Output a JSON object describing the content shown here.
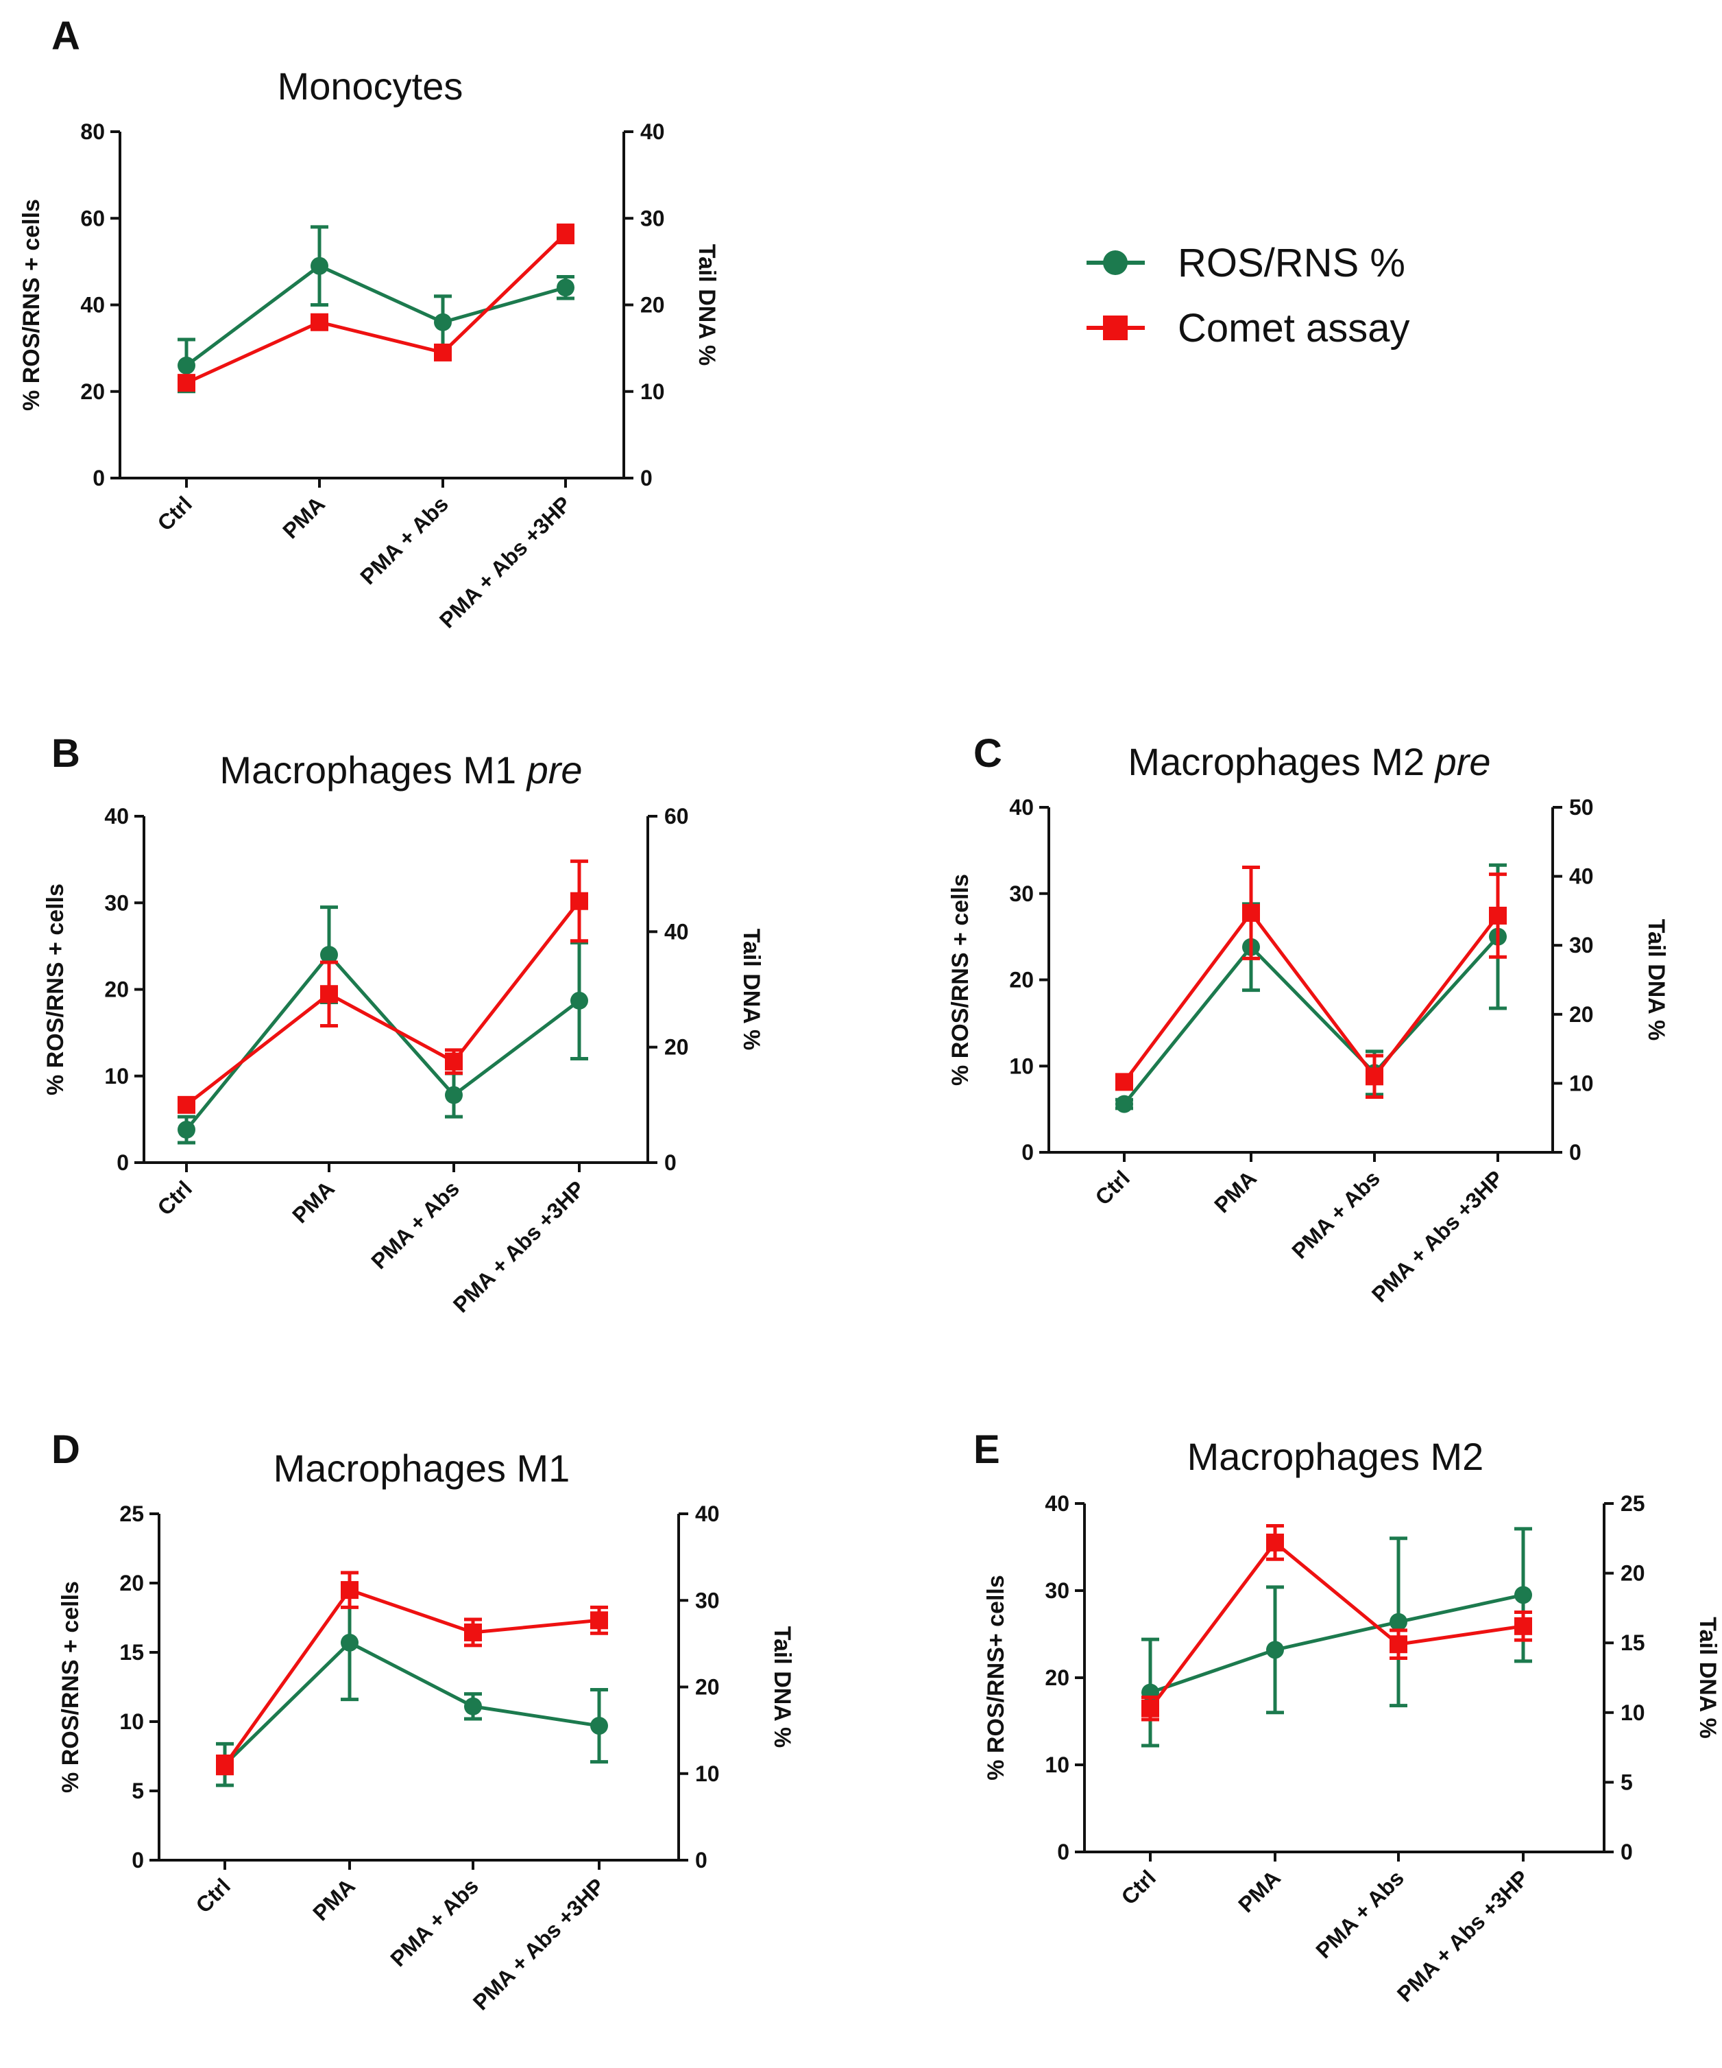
{
  "colors": {
    "ros": "#1c7a4e",
    "comet": "#ee1111",
    "axis": "#111111"
  },
  "legend": {
    "items": [
      {
        "label": "ROS/RNS %",
        "color": "#1c7a4e",
        "marker": "circle"
      },
      {
        "label": "Comet assay",
        "color": "#ee1111",
        "marker": "square"
      }
    ]
  },
  "chart_data": [
    {
      "panel": "A",
      "type": "line",
      "title": "Monocytes",
      "title_italic": "",
      "categories": [
        "Ctrl",
        "PMA",
        "PMA + Abs",
        "PMA + Abs +3HP"
      ],
      "ylabel": "% ROS/RNS + cells",
      "y2label": "Tail DNA %",
      "ylim": [
        0,
        80
      ],
      "yticks": [
        0,
        20,
        40,
        60,
        80
      ],
      "y2lim": [
        0,
        40
      ],
      "y2ticks": [
        0,
        10,
        20,
        30,
        40
      ],
      "series": [
        {
          "name": "ROS/RNS %",
          "axis": "left",
          "values": [
            26,
            49,
            36,
            44
          ],
          "err": [
            6,
            9,
            6,
            2.5
          ]
        },
        {
          "name": "Comet assay",
          "axis": "right",
          "values": [
            11,
            18,
            14.5,
            28.2
          ],
          "err": [
            0.8,
            0.8,
            0.8,
            1
          ]
        }
      ]
    },
    {
      "panel": "B",
      "type": "line",
      "title": "Macrophages M1 ",
      "title_italic": "pre",
      "categories": [
        "Ctrl",
        "PMA",
        "PMA + Abs",
        "PMA + Abs +3HP"
      ],
      "ylabel": "% ROS/RNS + cells",
      "y2label": "Tail DNA %",
      "ylim": [
        0,
        40
      ],
      "yticks": [
        0,
        10,
        20,
        30,
        40
      ],
      "y2lim": [
        0,
        60
      ],
      "y2ticks": [
        0,
        20,
        40,
        60
      ],
      "series": [
        {
          "name": "ROS/RNS %",
          "axis": "left",
          "values": [
            3.8,
            24,
            7.8,
            18.7
          ],
          "err": [
            1.5,
            5.5,
            2.5,
            6.7
          ]
        },
        {
          "name": "Comet assay",
          "axis": "right",
          "values": [
            10,
            29.2,
            17.5,
            45.3
          ],
          "err": [
            1,
            5.5,
            2,
            6.9
          ]
        }
      ]
    },
    {
      "panel": "C",
      "type": "line",
      "title": "Macrophages M2 ",
      "title_italic": "pre",
      "categories": [
        "Ctrl",
        "PMA",
        "PMA + Abs",
        "PMA + Abs +3HP"
      ],
      "ylabel": "% ROS/RNS + cells",
      "y2label": "Tail DNA %",
      "ylim": [
        0,
        40
      ],
      "yticks": [
        0,
        10,
        20,
        30,
        40
      ],
      "y2lim": [
        0,
        50
      ],
      "y2ticks": [
        0,
        10,
        20,
        30,
        40,
        50
      ],
      "series": [
        {
          "name": "ROS/RNS %",
          "axis": "left",
          "values": [
            5.6,
            23.8,
            9.2,
            25
          ],
          "err": [
            0.5,
            5,
            2.5,
            8.3
          ]
        },
        {
          "name": "Comet assay",
          "axis": "right",
          "values": [
            10.2,
            34.7,
            11,
            34.3
          ],
          "err": [
            1,
            6.6,
            3,
            6
          ]
        }
      ]
    },
    {
      "panel": "D",
      "type": "line",
      "title": "Macrophages M1",
      "title_italic": "",
      "categories": [
        "Ctrl",
        "PMA",
        "PMA + Abs",
        "PMA + Abs +3HP"
      ],
      "ylabel": "% ROS/RNS + cells",
      "y2label": "Tail DNA %",
      "ylim": [
        0,
        25
      ],
      "yticks": [
        0,
        5,
        10,
        15,
        20,
        25
      ],
      "y2lim": [
        0,
        40
      ],
      "y2ticks": [
        0,
        10,
        20,
        30,
        40
      ],
      "series": [
        {
          "name": "ROS/RNS %",
          "axis": "left",
          "values": [
            6.9,
            15.7,
            11.1,
            9.7
          ],
          "err": [
            1.5,
            4.1,
            0.9,
            2.6
          ]
        },
        {
          "name": "Comet assay",
          "axis": "right",
          "values": [
            11,
            31.2,
            26.3,
            27.7
          ],
          "err": [
            1,
            2,
            1.5,
            1.5
          ]
        }
      ]
    },
    {
      "panel": "E",
      "type": "line",
      "title": "Macrophages M2",
      "title_italic": "",
      "categories": [
        "Ctrl",
        "PMA",
        "PMA + Abs",
        "PMA + Abs +3HP"
      ],
      "ylabel": "% ROS/RNS+ cells",
      "y2label": "Tail DNA %",
      "ylim": [
        0,
        40
      ],
      "yticks": [
        0,
        10,
        20,
        30,
        40
      ],
      "y2lim": [
        0,
        25
      ],
      "y2ticks": [
        0,
        5,
        10,
        15,
        20,
        25
      ],
      "series": [
        {
          "name": "ROS/RNS %",
          "axis": "left",
          "values": [
            18.3,
            23.2,
            26.4,
            29.5
          ],
          "err": [
            6.1,
            7.2,
            9.6,
            7.6
          ]
        },
        {
          "name": "Comet assay",
          "axis": "right",
          "values": [
            10.3,
            22.2,
            14.9,
            16.2
          ],
          "err": [
            0.8,
            1.2,
            1,
            1
          ]
        }
      ]
    }
  ]
}
